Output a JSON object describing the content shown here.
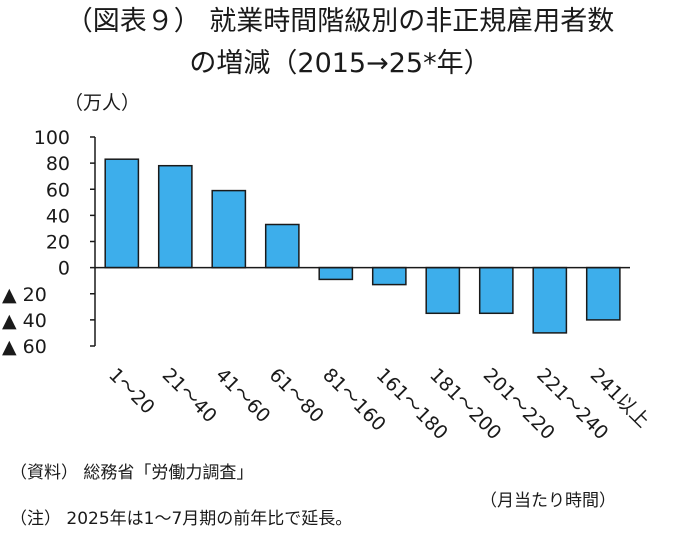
{
  "title_lines": [
    "（図表９） 就業時間階級別の非正規雇用者数",
    "の増減（2015→25*年）"
  ],
  "unit_label": "（万人）",
  "x_unit_label": "（月当たり時間）",
  "source_note": "（資料） 総務省「労働力調査」",
  "footnote": "（注） 2025年は1～7月期の前年比で延長。",
  "colors": {
    "bar_fill": "#3daeeb",
    "bar_stroke": "#1a1a1a",
    "axis": "#1a1a1a"
  },
  "chart_data": {
    "type": "bar",
    "title": "（図表９） 就業時間階級別の非正規雇用者数の増減（2015→25*年）",
    "xlabel": "（月当たり時間）",
    "ylabel": "（万人）",
    "ylim": [
      -60,
      100
    ],
    "yticks": [
      100,
      80,
      60,
      40,
      20,
      0,
      -20,
      -40,
      -60
    ],
    "ytick_labels": [
      "100",
      "80",
      "60",
      "40",
      "20",
      "0",
      "▲ 20",
      "▲ 40",
      "▲ 60"
    ],
    "grid": false,
    "categories": [
      "1～20",
      "21～40",
      "41～60",
      "61～80",
      "81～160",
      "161～180",
      "181～200",
      "201～220",
      "221～240",
      "241以上"
    ],
    "values": [
      83,
      78,
      59,
      33,
      -9,
      -13,
      -35,
      -35,
      -50,
      -40
    ]
  }
}
